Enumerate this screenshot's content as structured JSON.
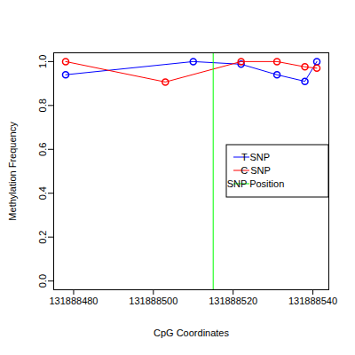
{
  "chart_data": {
    "type": "line",
    "x_label": "CpG Coordinates",
    "y_label": "Methylation Frequency",
    "xlim": [
      131888475,
      131888544
    ],
    "ylim": [
      -0.04,
      1.04
    ],
    "xticks": [
      131888480,
      131888500,
      131888520,
      131888540
    ],
    "yticks": [
      {
        "value": 0,
        "label": "0.0"
      },
      0.2,
      0.4,
      0.6,
      0.8,
      {
        "value": 1,
        "label": "1.0"
      }
    ],
    "legend": "right",
    "series": [
      {
        "name": "T SNP",
        "color": "#0000ff",
        "marker": "circle",
        "x": [
          131888478,
          131888510,
          131888522,
          131888531,
          131888538,
          131888541
        ],
        "values": [
          0.94,
          1.0,
          0.988,
          0.94,
          0.91,
          1.0
        ]
      },
      {
        "name": "C SNP",
        "color": "#ff0000",
        "marker": "circle",
        "x": [
          131888478,
          131888503,
          131888522,
          131888531,
          131888538,
          131888541
        ],
        "values": [
          1.0,
          0.907,
          1.0,
          1.0,
          0.976,
          0.97
        ]
      },
      {
        "name": "SNP Position",
        "color": "#00ff00",
        "type": "vline",
        "x": [
          131888515
        ]
      }
    ]
  }
}
